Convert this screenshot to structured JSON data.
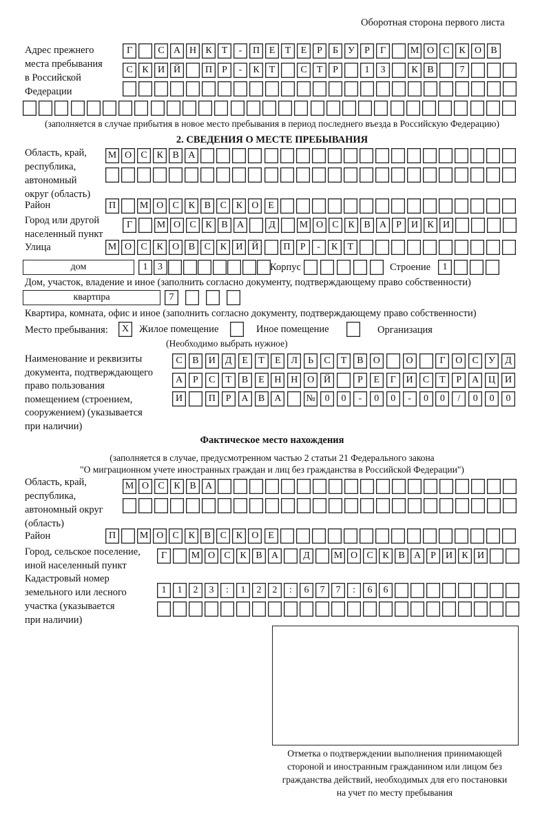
{
  "page_header": "Оборотная сторона первого листа",
  "prev_address": {
    "label": [
      "Адрес прежнего",
      "места пребывания",
      "в Российской",
      "Федерации"
    ],
    "rows": [
      [
        "Г",
        "",
        "С",
        "А",
        "Н",
        "К",
        "Т",
        "-",
        "П",
        "Е",
        "Т",
        "Е",
        "Р",
        "Б",
        "У",
        "Р",
        "Г",
        "",
        "М",
        "О",
        "С",
        "К",
        "О",
        "В"
      ],
      [
        "С",
        "К",
        "И",
        "Й",
        "",
        "П",
        "Р",
        "-",
        "К",
        "Т",
        "",
        "С",
        "Т",
        "Р",
        "",
        "1",
        "3",
        "",
        "К",
        "В",
        "",
        "7",
        "",
        "",
        ""
      ],
      [
        "",
        "",
        "",
        "",
        "",
        "",
        "",
        "",
        "",
        "",
        "",
        "",
        "",
        "",
        "",
        "",
        "",
        "",
        "",
        "",
        "",
        "",
        "",
        "",
        ""
      ],
      [
        "",
        "",
        "",
        "",
        "",
        "",
        "",
        "",
        "",
        "",
        "",
        "",
        "",
        "",
        "",
        "",
        "",
        "",
        "",
        "",
        "",
        "",
        "",
        "",
        "",
        "",
        "",
        "",
        "",
        "",
        ""
      ]
    ],
    "note": "(заполняется в случае прибытия в новое место пребывания в период последнего въезда в Российскую Федерацию)"
  },
  "section2": {
    "title": "2. СВЕДЕНИЯ О МЕСТЕ ПРЕБЫВАНИЯ",
    "region_label": [
      "Область, край,",
      "республика,",
      "автономный",
      "округ (область)"
    ],
    "region_rows": [
      [
        "М",
        "О",
        "С",
        "К",
        "В",
        "А",
        "",
        "",
        "",
        "",
        "",
        "",
        "",
        "",
        "",
        "",
        "",
        "",
        "",
        "",
        "",
        "",
        "",
        "",
        "",
        ""
      ],
      [
        "",
        "",
        "",
        "",
        "",
        "",
        "",
        "",
        "",
        "",
        "",
        "",
        "",
        "",
        "",
        "",
        "",
        "",
        "",
        "",
        "",
        "",
        "",
        "",
        "",
        ""
      ]
    ],
    "district_label": "Район",
    "district_row": [
      "П",
      "",
      "М",
      "О",
      "С",
      "К",
      "В",
      "С",
      "К",
      "О",
      "Е",
      "",
      "",
      "",
      "",
      "",
      "",
      "",
      "",
      "",
      "",
      "",
      "",
      "",
      "",
      ""
    ],
    "city_label": [
      "Город или другой",
      "населенный пункт"
    ],
    "city_row": [
      "Г",
      "",
      "М",
      "О",
      "С",
      "К",
      "В",
      "А",
      "",
      "Д",
      "",
      "М",
      "О",
      "С",
      "К",
      "В",
      "А",
      "Р",
      "И",
      "К",
      "И",
      "",
      "",
      "",
      ""
    ],
    "street_label": "Улица",
    "street_row": [
      "М",
      "О",
      "С",
      "К",
      "О",
      "В",
      "С",
      "К",
      "И",
      "Й",
      "",
      "П",
      "Р",
      "-",
      "К",
      "Т",
      "",
      "",
      "",
      "",
      "",
      "",
      "",
      "",
      "",
      ""
    ],
    "house_type": "дом",
    "house_row": [
      "1",
      "3",
      "",
      "",
      "",
      "",
      "",
      "",
      ""
    ],
    "korpus_label": "Корпус",
    "korpus_row": [
      "",
      "",
      "",
      "",
      ""
    ],
    "building_label": "Строение",
    "building_row": [
      "1",
      "",
      "",
      ""
    ],
    "house_note": "Дом, участок, владение и иное (заполнить согласно документу, подтверждающему право собственности)",
    "flat_type": "квартпра",
    "flat_row": [
      "7",
      "",
      "",
      ""
    ],
    "flat_note": "Квартира, комната, офис и иное (заполнить согласно документу, подтверждающему право собственности)",
    "stay_label": "Место пребывания:",
    "stay_options": [
      {
        "label": "Жилое помещение",
        "mark": "X"
      },
      {
        "label": "Иное помещение",
        "mark": ""
      },
      {
        "label": "Организация",
        "mark": ""
      }
    ],
    "stay_note": "(Необходимо выбрать нужное)",
    "doc_label": [
      "Наименование и реквизиты",
      "документа, подтверждающего",
      "право пользования",
      "помещением (строением,",
      "сооружением) (указывается",
      "при наличии)"
    ],
    "doc_rows": [
      [
        "С",
        "В",
        "И",
        "Д",
        "Е",
        "Т",
        "Е",
        "Л",
        "Ь",
        "С",
        "Т",
        "В",
        "О",
        "",
        "О",
        "",
        "Г",
        "О",
        "С",
        "У",
        "Д"
      ],
      [
        "А",
        "Р",
        "С",
        "Т",
        "В",
        "Е",
        "Н",
        "Н",
        "О",
        "Й",
        "",
        "Р",
        "Е",
        "Г",
        "И",
        "С",
        "Т",
        "Р",
        "А",
        "Ц",
        "И"
      ],
      [
        "И",
        "",
        "П",
        "Р",
        "А",
        "В",
        "А",
        "",
        "№",
        "0",
        "0",
        "-",
        "0",
        "0",
        "-",
        "0",
        "0",
        "/",
        "0",
        "0",
        "0"
      ]
    ]
  },
  "actual": {
    "title": "Фактическое место нахождения",
    "note": [
      "(заполняется в случае, предусмотренном частью 2 статьи 21 Федерального закона",
      "\"О миграционном учете иностранных граждан и лиц без гражданства в Российской Федерации\")"
    ],
    "region_label": [
      "Область, край,",
      "республика,",
      "автономный округ",
      "(область)"
    ],
    "region_rows": [
      [
        "М",
        "О",
        "С",
        "К",
        "В",
        "А",
        "",
        "",
        "",
        "",
        "",
        "",
        "",
        "",
        "",
        "",
        "",
        "",
        "",
        "",
        "",
        "",
        "",
        "",
        ""
      ],
      [
        "",
        "",
        "",
        "",
        "",
        "",
        "",
        "",
        "",
        "",
        "",
        "",
        "",
        "",
        "",
        "",
        "",
        "",
        "",
        "",
        "",
        "",
        "",
        "",
        ""
      ]
    ],
    "district_label": "Район",
    "district_row": [
      "П",
      "",
      "М",
      "О",
      "С",
      "К",
      "В",
      "С",
      "К",
      "О",
      "Е",
      "",
      "",
      "",
      "",
      "",
      "",
      "",
      "",
      "",
      "",
      "",
      "",
      "",
      "",
      ""
    ],
    "city_label": [
      "Город, сельское поселение,",
      "иной населенный пункт"
    ],
    "city_row": [
      "Г",
      "",
      "М",
      "О",
      "С",
      "К",
      "В",
      "А",
      "",
      "Д",
      "",
      "М",
      "О",
      "С",
      "К",
      "В",
      "А",
      "Р",
      "И",
      "К",
      "И",
      "",
      ""
    ],
    "cadastre_label": [
      "Кадастровый номер",
      "земельного или лесного",
      "участка (указывается",
      "при наличии)"
    ],
    "cadastre_rows": [
      [
        "1",
        "1",
        "2",
        "3",
        ":",
        "1",
        "2",
        "2",
        ":",
        "6",
        "7",
        "7",
        ":",
        "6",
        "6",
        "",
        "",
        "",
        "",
        "",
        "",
        "",
        ""
      ],
      [
        "",
        "",
        "",
        "",
        "",
        "",
        "",
        "",
        "",
        "",
        "",
        "",
        "",
        "",
        "",
        "",
        "",
        "",
        "",
        "",
        "",
        "",
        ""
      ]
    ]
  },
  "confirmation_note": [
    "Отметка о подтверждении выполнения принимающей",
    "стороной и иностранным гражданином или лицом без",
    "гражданства действий, необходимых для его постановки",
    "на учет по месту пребывания"
  ]
}
